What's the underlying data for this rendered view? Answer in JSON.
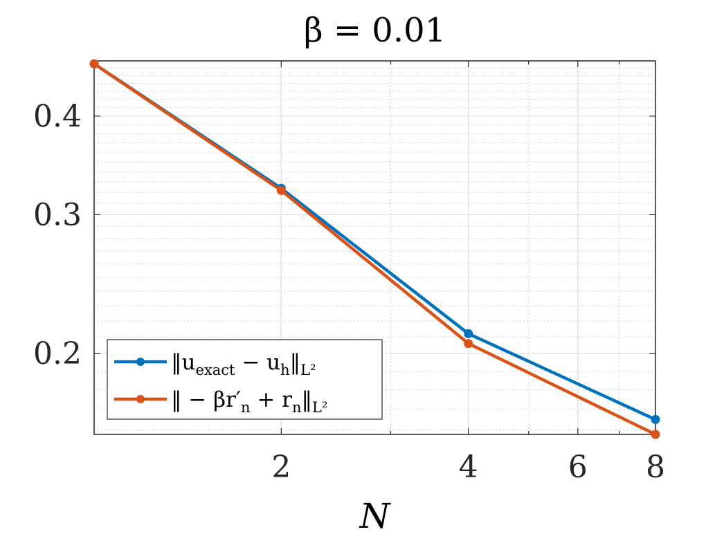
{
  "chart_data": {
    "type": "line",
    "title": "β = 0.01",
    "xlabel": "N",
    "ylabel": "",
    "xscale": "log",
    "yscale": "log",
    "xlim": [
      1,
      8
    ],
    "ylim": [
      0.158,
      0.47
    ],
    "xticks": [
      {
        "value": 2,
        "label": "2"
      },
      {
        "value": 4,
        "label": "4"
      },
      {
        "value": 6,
        "label": "6"
      },
      {
        "value": 8,
        "label": "8"
      }
    ],
    "yticks": [
      {
        "value": 0.2,
        "label": "0.2"
      },
      {
        "value": 0.3,
        "label": "0.3"
      },
      {
        "value": 0.4,
        "label": "0.4"
      }
    ],
    "grid": true,
    "legend_position": "lower-left",
    "series": [
      {
        "name": "‖u_exact − u_h‖_{L²}",
        "label_main": "‖u",
        "label_sub": "exact",
        "label_mid": " − u",
        "label_sub2": "h",
        "label_end": "‖",
        "label_sub3": "L²",
        "color": "#0072BD",
        "x": [
          1,
          2,
          4,
          8
        ],
        "y": [
          0.466,
          0.324,
          0.212,
          0.165
        ]
      },
      {
        "name": "‖ − βr′_n + r_n‖_{L²}",
        "label_main": "‖ − βr′",
        "label_sub": "n",
        "label_mid": " + r",
        "label_sub2": "n",
        "label_end": "‖",
        "label_sub3": "L²",
        "color": "#D95319",
        "x": [
          1,
          2,
          4,
          8
        ],
        "y": [
          0.466,
          0.322,
          0.206,
          0.158
        ]
      }
    ]
  }
}
